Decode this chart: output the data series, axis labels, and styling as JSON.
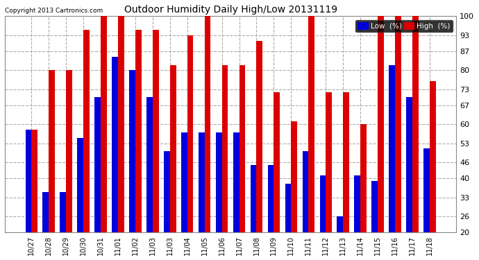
{
  "title": "Outdoor Humidity Daily High/Low 20131119",
  "copyright": "Copyright 2013 Cartronics.com",
  "dates": [
    "10/27",
    "10/28",
    "10/29",
    "10/30",
    "10/31",
    "11/01",
    "11/02",
    "11/03",
    "11/03",
    "11/04",
    "11/05",
    "11/06",
    "11/07",
    "11/08",
    "11/09",
    "11/10",
    "11/11",
    "11/12",
    "11/13",
    "11/14",
    "11/15",
    "11/16",
    "11/17",
    "11/18"
  ],
  "low_values": [
    58,
    35,
    35,
    55,
    70,
    85,
    80,
    70,
    50,
    57,
    57,
    57,
    57,
    45,
    45,
    38,
    50,
    41,
    26,
    41,
    39,
    82,
    70,
    51
  ],
  "high_values": [
    58,
    80,
    80,
    95,
    100,
    100,
    95,
    95,
    82,
    93,
    100,
    82,
    82,
    91,
    72,
    61,
    100,
    72,
    72,
    60,
    100,
    100,
    100,
    76
  ],
  "low_color": "#0000dd",
  "high_color": "#dd0000",
  "bg_color": "#ffffff",
  "plot_bg_color": "#ffffff",
  "grid_color": "#aaaaaa",
  "ylim": [
    20,
    100
  ],
  "yticks": [
    20,
    26,
    33,
    40,
    46,
    53,
    60,
    67,
    73,
    80,
    87,
    93,
    100
  ],
  "bar_width": 0.35,
  "bar_bottom": 20
}
